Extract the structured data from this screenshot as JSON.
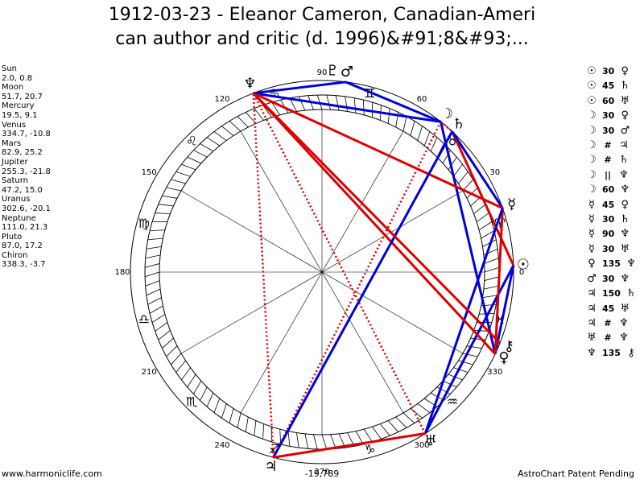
{
  "title": {
    "line1": "1912-03-23 - Eleanor Cameron, Canadian-Ameri",
    "line2": "can author and critic (d. 1996)&#91;8&#93;..."
  },
  "planets": [
    {
      "name": "Sun",
      "glyph": "☉",
      "position": "2.0, 0.8"
    },
    {
      "name": "Moon",
      "glyph": "☽",
      "position": "51.7, 20.7"
    },
    {
      "name": "Mercury",
      "glyph": "☿",
      "position": "19.5, 9.1"
    },
    {
      "name": "Venus",
      "glyph": "♀",
      "position": "334.7, -10.8"
    },
    {
      "name": "Mars",
      "glyph": "♂",
      "position": "82.9, 25.2"
    },
    {
      "name": "Jupiter",
      "glyph": "♃",
      "position": "255.3, -21.8"
    },
    {
      "name": "Saturn",
      "glyph": "♄",
      "position": "47.2, 15.0"
    },
    {
      "name": "Uranus",
      "glyph": "♅",
      "position": "302.6, -20.1"
    },
    {
      "name": "Neptune",
      "glyph": "♆",
      "position": "111.0, 21.3"
    },
    {
      "name": "Pluto",
      "glyph": "♇",
      "position": "87.0, 17.2"
    },
    {
      "name": "Chiron",
      "glyph": "⚷",
      "position": "338.3, -3.7"
    }
  ],
  "aspects": [
    {
      "a": "☉",
      "asp": "30",
      "b": "♀",
      "color": "#0000dd",
      "style": "solid"
    },
    {
      "a": "☉",
      "asp": "45",
      "b": "♄",
      "color": "#dd0000",
      "style": "solid"
    },
    {
      "a": "☉",
      "asp": "60",
      "b": "♅",
      "color": "#0000dd",
      "style": "solid"
    },
    {
      "a": "☽",
      "asp": "30",
      "b": "♀",
      "color": "#0000dd",
      "style": "solid"
    },
    {
      "a": "☽",
      "asp": "30",
      "b": "♂",
      "color": "#0000dd",
      "style": "solid"
    },
    {
      "a": "☽",
      "asp": "#",
      "b": "♃",
      "color": "#dd0000",
      "style": "dotted"
    },
    {
      "a": "☽",
      "asp": "#",
      "b": "♄",
      "color": "#dd0000",
      "style": "dotted"
    },
    {
      "a": "☽",
      "asp": "||",
      "b": "♆",
      "color": "#dd0000",
      "style": "dotted"
    },
    {
      "a": "☽",
      "asp": "60",
      "b": "♆",
      "color": "#0000dd",
      "style": "solid"
    },
    {
      "a": "☿",
      "asp": "45",
      "b": "♀",
      "color": "#dd0000",
      "style": "solid"
    },
    {
      "a": "☿",
      "asp": "30",
      "b": "♄",
      "color": "#0000dd",
      "style": "solid"
    },
    {
      "a": "☿",
      "asp": "90",
      "b": "♆",
      "color": "#dd0000",
      "style": "solid"
    },
    {
      "a": "☿",
      "asp": "30",
      "b": "♅",
      "color": "#0000dd",
      "style": "solid"
    },
    {
      "a": "♀",
      "asp": "135",
      "b": "♆",
      "color": "#dd0000",
      "style": "solid"
    },
    {
      "a": "♂",
      "asp": "30",
      "b": "♆",
      "color": "#0000dd",
      "style": "solid"
    },
    {
      "a": "♃",
      "asp": "150",
      "b": "♄",
      "color": "#0000dd",
      "style": "solid"
    },
    {
      "a": "♃",
      "asp": "45",
      "b": "♅",
      "color": "#dd0000",
      "style": "solid"
    },
    {
      "a": "♃",
      "asp": "#",
      "b": "♆",
      "color": "#dd0000",
      "style": "dotted"
    },
    {
      "a": "♅",
      "asp": "#",
      "b": "♆",
      "color": "#dd0000",
      "style": "dotted"
    },
    {
      "a": "♆",
      "asp": "135",
      "b": "⚷",
      "color": "#dd0000",
      "style": "solid"
    }
  ],
  "signs": [
    "♈",
    "♉",
    "♊",
    "♋",
    "♌",
    "♍",
    "♎",
    "♏",
    "♐",
    "♑",
    "♒",
    "♓"
  ],
  "degree_labels": [
    "0",
    "30",
    "60",
    "90",
    "120",
    "150",
    "180",
    "210",
    "240",
    "270",
    "300",
    "330"
  ],
  "footer": {
    "left": "www.harmoniclife.com",
    "center": "-19,789",
    "right": "AstroChart Patent Pending"
  }
}
